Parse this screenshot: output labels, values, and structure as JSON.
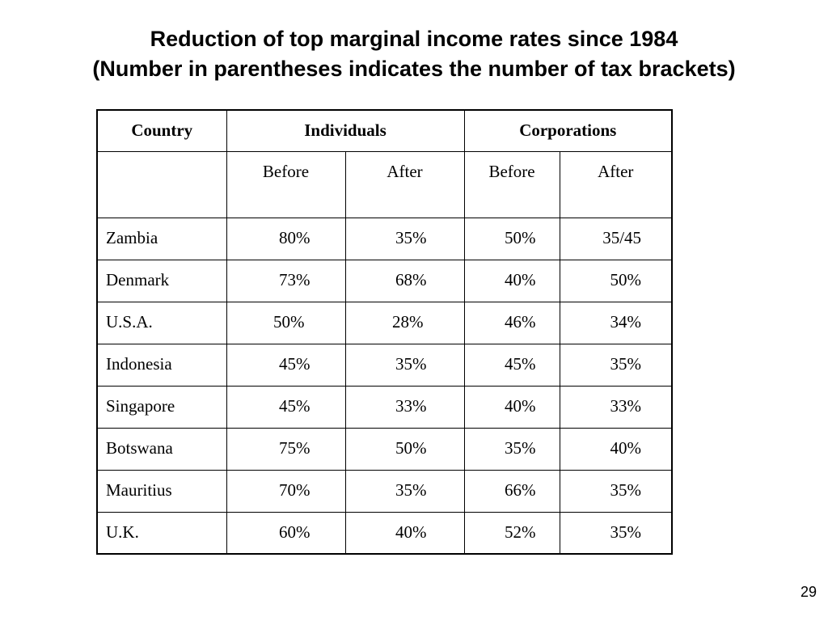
{
  "title": {
    "line1": "Reduction of top marginal income rates since 1984",
    "line2": "(Number in parentheses indicates the number of tax brackets)"
  },
  "table": {
    "headers": {
      "country": "Country",
      "individuals": "Individuals",
      "corporations": "Corporations"
    },
    "subheaders": {
      "ind_before": "Before",
      "ind_after": "After",
      "corp_before": "Before",
      "corp_after": "After"
    },
    "rows": [
      {
        "country": "Zambia",
        "ind_before": "80%",
        "ind_after": "35%",
        "corp_before": "50%",
        "corp_after": "35/45"
      },
      {
        "country": "Denmark",
        "ind_before": "73%",
        "ind_after": "68%",
        "corp_before": "40%",
        "corp_after": "50%"
      },
      {
        "country": "U.S.A.",
        "ind_before": "50%",
        "ind_after": "28%",
        "corp_before": "46%",
        "corp_after": "34%"
      },
      {
        "country": "Indonesia",
        "ind_before": "45%",
        "ind_after": "35%",
        "corp_before": "45%",
        "corp_after": "35%"
      },
      {
        "country": "Singapore",
        "ind_before": "45%",
        "ind_after": "33%",
        "corp_before": "40%",
        "corp_after": "33%"
      },
      {
        "country": "Botswana",
        "ind_before": "75%",
        "ind_after": "50%",
        "corp_before": "35%",
        "corp_after": "40%"
      },
      {
        "country": "Mauritius",
        "ind_before": "70%",
        "ind_after": "35%",
        "corp_before": "66%",
        "corp_after": "35%"
      },
      {
        "country": "U.K.",
        "ind_before": "60%",
        "ind_after": "40%",
        "corp_before": "52%",
        "corp_after": "35%"
      }
    ]
  },
  "page_number": "29"
}
